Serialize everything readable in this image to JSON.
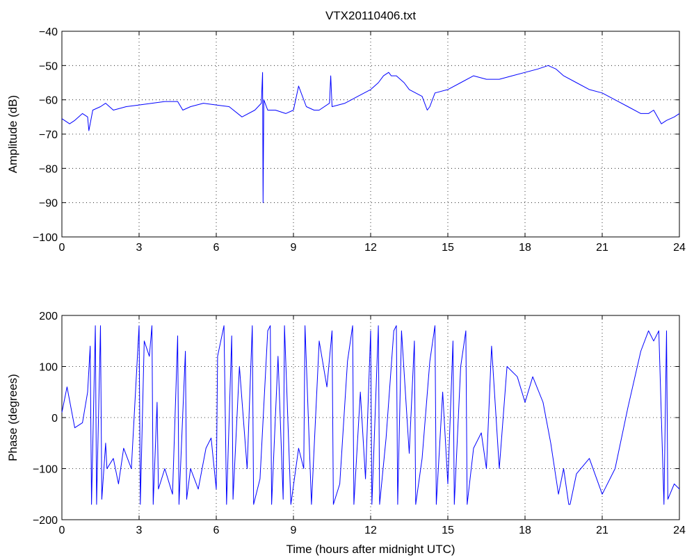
{
  "figure": {
    "title": "VTX20110406.txt",
    "line_color": "#0000ff"
  },
  "chart_data": [
    {
      "type": "line",
      "title": "VTX20110406.txt",
      "xlabel": "",
      "ylabel": "Amplitude (dB)",
      "xlim": [
        0,
        24
      ],
      "ylim": [
        -100,
        -40
      ],
      "xticks": [
        0,
        3,
        6,
        9,
        12,
        15,
        18,
        21,
        24
      ],
      "yticks": [
        -100,
        -90,
        -80,
        -70,
        -60,
        -50,
        -40
      ],
      "xtick_labels": [
        "0",
        "3",
        "6",
        "9",
        "12",
        "15",
        "18",
        "21",
        "24"
      ],
      "ytick_labels": [
        "−100",
        "−90",
        "−80",
        "−70",
        "−60",
        "−50",
        "−40"
      ],
      "grid": true,
      "series": [
        {
          "color": "#0000ff",
          "x": [
            0,
            0.3,
            0.5,
            0.8,
            1.0,
            1.05,
            1.2,
            1.5,
            1.7,
            2.0,
            2.5,
            3.0,
            3.5,
            4.0,
            4.5,
            4.7,
            5.0,
            5.5,
            6.0,
            6.5,
            7.0,
            7.5,
            7.75,
            7.8,
            7.82,
            7.85,
            8.0,
            8.3,
            8.7,
            9.0,
            9.2,
            9.5,
            9.8,
            10.0,
            10.4,
            10.45,
            10.5,
            11.0,
            11.5,
            12.0,
            12.3,
            12.5,
            12.7,
            12.8,
            13.0,
            13.3,
            13.5,
            14.0,
            14.2,
            14.3,
            14.5,
            15.0,
            15.5,
            16.0,
            16.5,
            17.0,
            17.5,
            18.0,
            18.5,
            18.9,
            19.2,
            19.5,
            20.0,
            20.5,
            21.0,
            21.5,
            22.0,
            22.5,
            22.8,
            23.0,
            23.3,
            23.5,
            23.8,
            24.0
          ],
          "y": [
            -65.5,
            -67,
            -66,
            -64,
            -65,
            -69,
            -63,
            -62,
            -61,
            -63,
            -62,
            -61.5,
            -61,
            -60.5,
            -60.5,
            -63,
            -62,
            -61,
            -61.5,
            -62,
            -65,
            -63,
            -61,
            -52,
            -90,
            -60,
            -63,
            -63,
            -64,
            -63,
            -56,
            -62,
            -63,
            -63,
            -61,
            -53,
            -62,
            -61,
            -59,
            -57,
            -55,
            -53,
            -52,
            -53,
            -53,
            -55,
            -57,
            -59,
            -63,
            -62,
            -58,
            -57,
            -55,
            -53,
            -54,
            -54,
            -53,
            -52,
            -51,
            -50,
            -51,
            -53,
            -55,
            -57,
            -58,
            -60,
            -62,
            -64,
            -64,
            -63,
            -67,
            -66,
            -65,
            -64
          ]
        }
      ]
    },
    {
      "type": "line",
      "title": "",
      "xlabel": "Time (hours after midnight UTC)",
      "ylabel": "Phase (degrees)",
      "xlim": [
        0,
        24
      ],
      "ylim": [
        -200,
        200
      ],
      "xticks": [
        0,
        3,
        6,
        9,
        12,
        15,
        18,
        21,
        24
      ],
      "yticks": [
        -200,
        -100,
        0,
        100,
        200
      ],
      "xtick_labels": [
        "0",
        "3",
        "6",
        "9",
        "12",
        "15",
        "18",
        "21",
        "24"
      ],
      "ytick_labels": [
        "−200",
        "−100",
        "0",
        "100",
        "200"
      ],
      "grid": true,
      "series": [
        {
          "color": "#0000ff",
          "x": [
            0,
            0.2,
            0.5,
            0.8,
            1.0,
            1.1,
            1.15,
            1.3,
            1.35,
            1.5,
            1.55,
            1.7,
            1.75,
            2.0,
            2.2,
            2.4,
            2.7,
            3.0,
            3.05,
            3.2,
            3.4,
            3.5,
            3.55,
            3.7,
            3.75,
            4.0,
            4.3,
            4.5,
            4.55,
            4.8,
            4.85,
            5.0,
            5.3,
            5.6,
            5.8,
            6.0,
            6.05,
            6.3,
            6.4,
            6.6,
            6.65,
            6.9,
            7.2,
            7.4,
            7.45,
            7.7,
            8.0,
            8.1,
            8.15,
            8.4,
            8.6,
            8.65,
            8.9,
            9.2,
            9.4,
            9.45,
            9.7,
            10.0,
            10.3,
            10.5,
            10.55,
            10.8,
            11.1,
            11.3,
            11.35,
            11.6,
            11.8,
            12.0,
            12.05,
            12.3,
            12.35,
            12.6,
            12.9,
            13.0,
            13.05,
            13.2,
            13.5,
            13.7,
            13.75,
            14.0,
            14.3,
            14.5,
            14.55,
            14.8,
            15.0,
            15.2,
            15.25,
            15.5,
            15.7,
            15.75,
            16.0,
            16.3,
            16.5,
            16.7,
            17.0,
            17.3,
            17.7,
            18.0,
            18.3,
            18.7,
            19.0,
            19.3,
            19.5,
            19.7,
            19.75,
            20.0,
            20.5,
            21.0,
            21.5,
            22.0,
            22.5,
            22.8,
            23.0,
            23.2,
            23.4,
            23.5,
            23.55,
            23.8,
            24.0
          ],
          "y": [
            10,
            60,
            -20,
            -10,
            50,
            140,
            -170,
            180,
            -170,
            180,
            -160,
            -50,
            -100,
            -80,
            -130,
            -60,
            -100,
            180,
            -170,
            150,
            120,
            180,
            -170,
            30,
            -140,
            -100,
            -150,
            160,
            -170,
            130,
            -160,
            -100,
            -140,
            -60,
            -40,
            -140,
            120,
            180,
            -170,
            160,
            -160,
            100,
            -100,
            180,
            -170,
            -120,
            170,
            180,
            -170,
            120,
            -160,
            180,
            -170,
            -60,
            -100,
            180,
            -170,
            150,
            60,
            170,
            -170,
            -130,
            110,
            180,
            -170,
            50,
            -120,
            170,
            -170,
            180,
            -170,
            -40,
            170,
            180,
            -170,
            170,
            -70,
            150,
            -170,
            -80,
            110,
            180,
            -170,
            50,
            -130,
            150,
            -170,
            100,
            170,
            -170,
            -60,
            -30,
            -100,
            140,
            -100,
            100,
            80,
            30,
            80,
            30,
            -50,
            -150,
            -100,
            -170,
            -170,
            -110,
            -80,
            -150,
            -100,
            20,
            130,
            170,
            150,
            170,
            -170,
            170,
            -160,
            -130,
            -140
          ]
        }
      ]
    }
  ]
}
